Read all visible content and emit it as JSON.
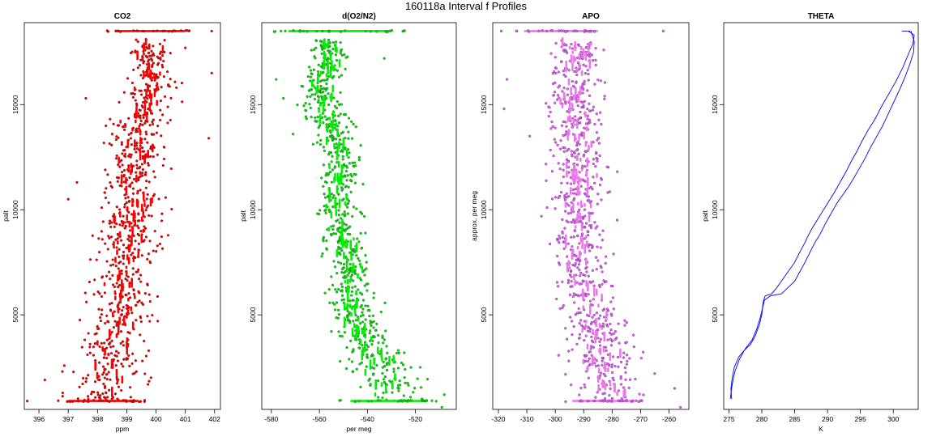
{
  "figure": {
    "title": "160118a   Interval f Profiles"
  },
  "chart_data": [
    {
      "id": "co2",
      "type": "scatter",
      "title": "CO2",
      "xlabel": "ppm",
      "ylabel": "palt",
      "xlim": [
        395.5,
        402.2
      ],
      "ylim": [
        500,
        18900
      ],
      "xticks": [
        396,
        397,
        398,
        399,
        400,
        401,
        402
      ],
      "yticks": [
        5000,
        10000,
        15000
      ],
      "colors": {
        "point": "#ee0000",
        "dense": "#ff0000",
        "outline": "#7a1010"
      },
      "band": {
        "palt": [
          900,
          2000,
          3000,
          4000,
          5000,
          6000,
          7000,
          8000,
          9000,
          10000,
          11000,
          12000,
          13000,
          14000,
          15000,
          16000,
          17000,
          18400
        ],
        "center": [
          398.3,
          398.4,
          398.5,
          398.6,
          398.8,
          398.9,
          399.0,
          399.0,
          399.1,
          399.2,
          399.2,
          399.3,
          399.4,
          399.5,
          399.6,
          399.8,
          399.9,
          399.6
        ],
        "spread": [
          1.0,
          0.9,
          0.9,
          0.9,
          0.8,
          0.8,
          0.8,
          0.8,
          0.8,
          0.8,
          0.8,
          0.7,
          0.7,
          0.7,
          0.6,
          0.6,
          0.5,
          0.5
        ]
      },
      "flats": [
        {
          "palt": 18500,
          "xmin": 398.6,
          "xmax": 401.0
        },
        {
          "palt": 900,
          "xmin": 397.0,
          "xmax": 399.4
        }
      ],
      "extremes": [
        {
          "x": 395.6,
          "y": 900
        },
        {
          "x": 396.2,
          "y": 1900
        },
        {
          "x": 396.8,
          "y": 2300
        },
        {
          "x": 397.0,
          "y": 10500
        },
        {
          "x": 397.3,
          "y": 11300
        },
        {
          "x": 401.8,
          "y": 13400
        },
        {
          "x": 401.9,
          "y": 16500
        },
        {
          "x": 401.9,
          "y": 18500
        },
        {
          "x": 401.0,
          "y": 17700
        },
        {
          "x": 397.6,
          "y": 15300
        }
      ]
    },
    {
      "id": "o2n2",
      "type": "scatter",
      "title": "d(O2/N2)",
      "xlabel": "per meg",
      "ylabel": "palt",
      "xlim": [
        -584,
        -503
      ],
      "ylim": [
        500,
        18900
      ],
      "xticks": [
        -580,
        -560,
        -540,
        -520
      ],
      "yticks": [
        5000,
        10000,
        15000
      ],
      "colors": {
        "point": "#00dd00",
        "dense": "#00ee00",
        "outline": "#146614"
      },
      "band": {
        "palt": [
          900,
          2000,
          3000,
          4000,
          5000,
          6000,
          7000,
          8000,
          9000,
          10000,
          11000,
          12000,
          13000,
          14000,
          15000,
          16000,
          17000,
          18400
        ],
        "center": [
          -530,
          -532,
          -537,
          -541,
          -545,
          -546,
          -547,
          -549,
          -551,
          -553,
          -552,
          -551,
          -552,
          -556,
          -560,
          -559,
          -556,
          -558
        ],
        "spread": [
          10,
          11,
          10,
          8,
          7,
          6,
          6,
          6,
          6,
          6,
          6,
          6,
          6,
          7,
          7,
          6,
          6,
          6
        ]
      },
      "flats": [
        {
          "palt": 18500,
          "xmin": -573,
          "xmax": -530
        },
        {
          "palt": 900,
          "xmin": -547,
          "xmax": -515
        }
      ],
      "extremes": [
        {
          "x": -508,
          "y": 1200
        },
        {
          "x": -509,
          "y": 600
        },
        {
          "x": -576,
          "y": 18500
        },
        {
          "x": -578,
          "y": 16200
        },
        {
          "x": -575,
          "y": 15300
        },
        {
          "x": -571,
          "y": 13600
        },
        {
          "x": -533,
          "y": 17200
        },
        {
          "x": -518,
          "y": 2500
        }
      ]
    },
    {
      "id": "apo",
      "type": "scatter",
      "title": "APO",
      "xlabel": "",
      "ylabel": "approx. per meg",
      "xlim": [
        -322,
        -253
      ],
      "ylim": [
        500,
        18900
      ],
      "xticks": [
        -320,
        -310,
        -300,
        -290,
        -280,
        -270,
        -260
      ],
      "yticks": [
        5000,
        10000,
        15000
      ],
      "colors": {
        "point": "#dd66ee",
        "dense": "#ee77ee",
        "outline": "#6a1a7a"
      },
      "band": {
        "palt": [
          900,
          2000,
          3000,
          4000,
          5000,
          6000,
          7000,
          8000,
          9000,
          10000,
          11000,
          12000,
          13000,
          14000,
          15000,
          16000,
          17000,
          18400
        ],
        "center": [
          -280,
          -282,
          -284,
          -286,
          -288,
          -289,
          -290,
          -291,
          -292,
          -292,
          -292,
          -292,
          -292,
          -293,
          -294,
          -293,
          -291,
          -293
        ],
        "spread": [
          9,
          9,
          8,
          8,
          7,
          7,
          7,
          7,
          7,
          7,
          7,
          7,
          7,
          7,
          7,
          7,
          7,
          7
        ]
      },
      "flats": [
        {
          "palt": 18500,
          "xmin": -311,
          "xmax": -285
        },
        {
          "palt": 900,
          "xmin": -294,
          "xmax": -272
        }
      ],
      "extremes": [
        {
          "x": -318,
          "y": 14800
        },
        {
          "x": -317,
          "y": 16200
        },
        {
          "x": -319,
          "y": 18500
        },
        {
          "x": -256,
          "y": 600
        },
        {
          "x": -262,
          "y": 18500
        },
        {
          "x": -258,
          "y": 1500
        },
        {
          "x": -265,
          "y": 2200
        },
        {
          "x": -309,
          "y": 13500
        }
      ]
    },
    {
      "id": "theta",
      "type": "line",
      "title": "THETA",
      "xlabel": "K",
      "ylabel": "palt",
      "xlim": [
        274.2,
        303.8
      ],
      "ylim": [
        500,
        18900
      ],
      "xticks": [
        275,
        280,
        285,
        290,
        295,
        300
      ],
      "yticks": [
        5000,
        10000,
        15000
      ],
      "colors": {
        "line": "#0000ff"
      },
      "series": [
        {
          "x": [
            275.4,
            275.3,
            275.5,
            275.8,
            276.5,
            277.3,
            278.3,
            279.0,
            279.6,
            280.0,
            280.2,
            280.5,
            281.5,
            282.3,
            283.2,
            284.1,
            285.0,
            285.8,
            286.5,
            287.1,
            287.8,
            288.6,
            289.4,
            290.2,
            291.0,
            291.9,
            292.8,
            293.6,
            294.5,
            295.3,
            296.2,
            297.2,
            298.2,
            299.3,
            300.4,
            301.5,
            302.3,
            303.0,
            303.2,
            302.3
          ],
          "y": [
            1000,
            1500,
            2000,
            2500,
            3000,
            3300,
            3600,
            4000,
            4500,
            5000,
            5600,
            5900,
            6000,
            6300,
            6700,
            7100,
            7500,
            8000,
            8400,
            8800,
            9200,
            9600,
            10000,
            10400,
            10800,
            11300,
            11800,
            12300,
            12800,
            13300,
            13800,
            14300,
            14900,
            15500,
            16100,
            16800,
            17400,
            17900,
            18300,
            18500
          ]
        },
        {
          "x": [
            275.2,
            275.5,
            275.9,
            276.6,
            277.5,
            278.5,
            279.2,
            279.7,
            280.1,
            280.4,
            281.3,
            283.0,
            284.0,
            285.0,
            285.7,
            286.4,
            287.2,
            288.0,
            288.8,
            289.6,
            290.5,
            291.4,
            292.3,
            293.2,
            294.0,
            294.9,
            295.8,
            296.6,
            297.5,
            298.4,
            299.3,
            300.2,
            301.1,
            301.9,
            302.6,
            303.1,
            303.2,
            302.7
          ],
          "y": [
            1000,
            1700,
            2300,
            2900,
            3400,
            3800,
            4300,
            4800,
            5300,
            5700,
            5900,
            6000,
            6300,
            6600,
            7000,
            7400,
            7900,
            8400,
            8800,
            9300,
            9800,
            10300,
            10700,
            11100,
            11500,
            12000,
            12500,
            13000,
            13500,
            14000,
            14600,
            15200,
            15800,
            16400,
            17000,
            17500,
            18000,
            18500
          ]
        },
        {
          "x": [
            301.3,
            302.6
          ],
          "y": [
            18500,
            18500
          ]
        }
      ]
    }
  ]
}
